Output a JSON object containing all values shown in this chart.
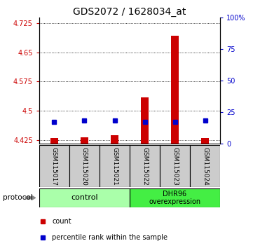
{
  "title": "GDS2072 / 1628034_at",
  "samples": [
    "GSM115017",
    "GSM115020",
    "GSM115021",
    "GSM115022",
    "GSM115023",
    "GSM115024"
  ],
  "count_values": [
    4.43,
    4.432,
    4.438,
    4.535,
    4.692,
    4.43
  ],
  "percentile_values": [
    17.5,
    18.5,
    18.5,
    17.5,
    17.5,
    18.5
  ],
  "ylim_left": [
    4.415,
    4.74
  ],
  "ylim_right": [
    0,
    100
  ],
  "yticks_left": [
    4.425,
    4.5,
    4.575,
    4.65,
    4.725
  ],
  "yticks_right": [
    0,
    25,
    50,
    75,
    100
  ],
  "ytick_labels_left": [
    "4.425",
    "4.5",
    "4.575",
    "4.65",
    "4.725"
  ],
  "ytick_labels_right": [
    "0",
    "25",
    "50",
    "75",
    "100%"
  ],
  "bar_bottom": 4.415,
  "red_color": "#cc0000",
  "blue_color": "#0000cc",
  "control_label": "control",
  "overexp_label": "DHR96\noverexpression",
  "protocol_label": "protocol",
  "legend_count": "count",
  "legend_percentile": "percentile rank within the sample",
  "control_bg": "#aaffaa",
  "overexp_bg": "#44ee44",
  "sample_bg": "#cccccc",
  "title_fontsize": 10,
  "bar_width": 0.25,
  "figsize": [
    3.61,
    3.54
  ],
  "dpi": 100
}
